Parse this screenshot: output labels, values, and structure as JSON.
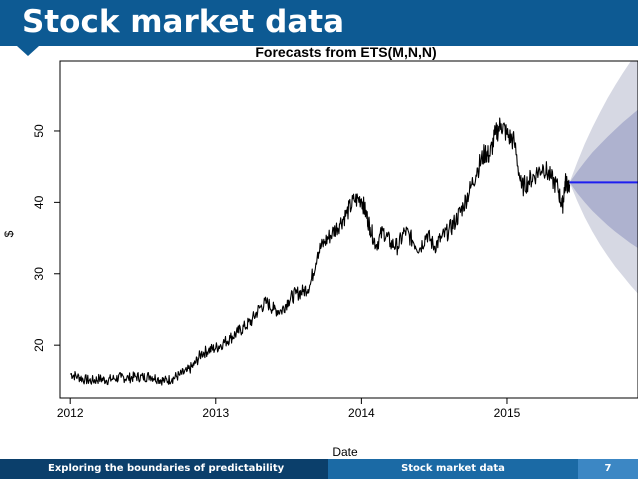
{
  "slide": {
    "title": "Stock market data",
    "footer_left": "Exploring the boundaries of predictability",
    "footer_center": "Stock market data",
    "page_number": "7"
  },
  "chart_data": {
    "type": "line",
    "title": "Forecasts from ETS(M,N,N)",
    "xlabel": "Date",
    "ylabel": "$",
    "xlim": [
      2011.93,
      2015.9
    ],
    "ylim": [
      12.6,
      59.8
    ],
    "x_ticks": [
      2012,
      2013,
      2014,
      2015
    ],
    "y_ticks": [
      20,
      30,
      40,
      50
    ],
    "grid": false,
    "series": [
      {
        "values_x": [
          2012.0,
          2012.05,
          2012.1,
          2012.15,
          2012.2,
          2012.25,
          2012.3,
          2012.35,
          2012.4,
          2012.45,
          2012.5,
          2012.55,
          2012.6,
          2012.65,
          2012.7,
          2012.75,
          2012.8,
          2012.85,
          2012.9,
          2012.95,
          2013.0,
          2013.05,
          2013.1,
          2013.15,
          2013.2,
          2013.25,
          2013.3,
          2013.35,
          2013.4,
          2013.45,
          2013.5,
          2013.55,
          2013.6,
          2013.65,
          2013.7,
          2013.75,
          2013.8,
          2013.85,
          2013.9,
          2013.95,
          2014.0,
          2014.03,
          2014.06,
          2014.1,
          2014.15,
          2014.2,
          2014.25,
          2014.3,
          2014.35,
          2014.4,
          2014.45,
          2014.5,
          2014.55,
          2014.6,
          2014.65,
          2014.7,
          2014.75,
          2014.8,
          2014.85,
          2014.88,
          2014.92,
          2014.96,
          2015.0,
          2015.05,
          2015.1,
          2015.15,
          2015.2,
          2015.25,
          2015.3,
          2015.35,
          2015.38,
          2015.4,
          2015.43
        ],
        "values_y": [
          16.0,
          15.6,
          15.2,
          15.0,
          15.3,
          15.1,
          15.3,
          15.5,
          15.4,
          15.6,
          15.5,
          15.7,
          15.3,
          15.0,
          15.3,
          15.8,
          16.3,
          17.2,
          18.8,
          19.3,
          19.6,
          20.3,
          21.0,
          21.8,
          22.6,
          23.5,
          25.2,
          26.0,
          25.0,
          24.8,
          26.3,
          27.2,
          27.5,
          28.5,
          33.0,
          34.5,
          35.7,
          37.0,
          38.5,
          40.3,
          40.5,
          38.5,
          36.5,
          34.0,
          36.0,
          34.3,
          33.8,
          36.0,
          34.7,
          33.5,
          35.6,
          33.8,
          35.0,
          36.0,
          37.5,
          39.5,
          42.0,
          44.8,
          47.0,
          46.5,
          49.5,
          51.0,
          49.5,
          48.5,
          42.0,
          43.0,
          44.0,
          45.0,
          43.5,
          42.0,
          39.3,
          42.8,
          42.5
        ]
      }
    ],
    "forecast": {
      "start_x": 2015.43,
      "end_x": 2015.9,
      "point": 42.8,
      "lower80": [
        42.8,
        41.3,
        40.0,
        38.8,
        37.8,
        36.8,
        35.9,
        35.1,
        34.3,
        33.6
      ],
      "upper80": [
        42.8,
        44.3,
        45.7,
        47.0,
        48.1,
        49.2,
        50.2,
        51.2,
        52.1,
        53.0
      ],
      "lower95": [
        42.8,
        40.2,
        37.9,
        35.9,
        34.1,
        32.5,
        31.0,
        29.7,
        28.4,
        27.2
      ],
      "upper95": [
        42.8,
        45.6,
        48.2,
        50.5,
        52.6,
        54.6,
        56.4,
        58.1,
        59.7,
        61.2
      ],
      "colors": {
        "line": "#1d1df0",
        "band80": "#aeb2cf",
        "band95": "#d6d8e3"
      }
    }
  }
}
